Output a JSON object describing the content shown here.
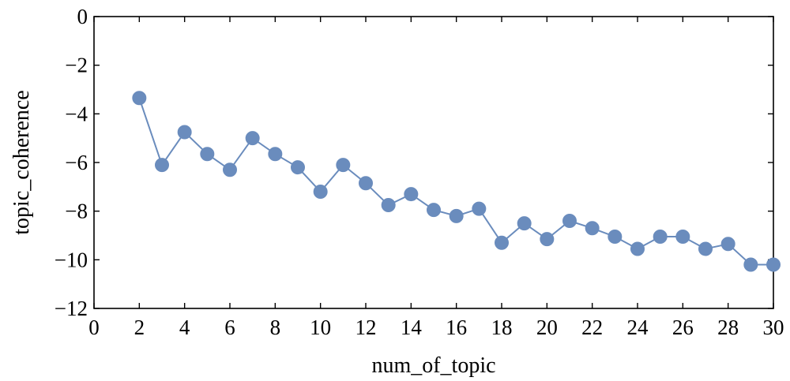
{
  "chart_data": {
    "type": "line",
    "xlabel": "num_of_topic",
    "ylabel": "topic_coherence",
    "xlim": [
      0,
      30
    ],
    "ylim": [
      -12,
      0
    ],
    "x_ticks": [
      "0",
      "2",
      "4",
      "6",
      "8",
      "10",
      "12",
      "14",
      "16",
      "18",
      "20",
      "22",
      "24",
      "26",
      "28",
      "30"
    ],
    "y_ticks": [
      "0",
      "−2",
      "−4",
      "−6",
      "−8",
      "−10",
      "−12"
    ],
    "grid": false,
    "legend": "none",
    "series": [
      {
        "color": "#6a8cbd",
        "marker": "circle",
        "x": [
          2,
          3,
          4,
          5,
          6,
          7,
          8,
          9,
          10,
          11,
          12,
          13,
          14,
          15,
          16,
          17,
          18,
          19,
          20,
          21,
          22,
          23,
          24,
          25,
          26,
          27,
          28,
          29,
          30
        ],
        "y": [
          -3.35,
          -6.1,
          -4.75,
          -5.65,
          -6.3,
          -5.0,
          -5.65,
          -6.2,
          -7.2,
          -6.1,
          -6.85,
          -7.75,
          -7.3,
          -7.95,
          -8.2,
          -7.9,
          -9.3,
          -8.5,
          -9.15,
          -8.4,
          -8.7,
          -9.05,
          -9.55,
          -9.05,
          -9.05,
          -9.55,
          -9.35,
          -10.2,
          -10.2
        ]
      }
    ]
  }
}
